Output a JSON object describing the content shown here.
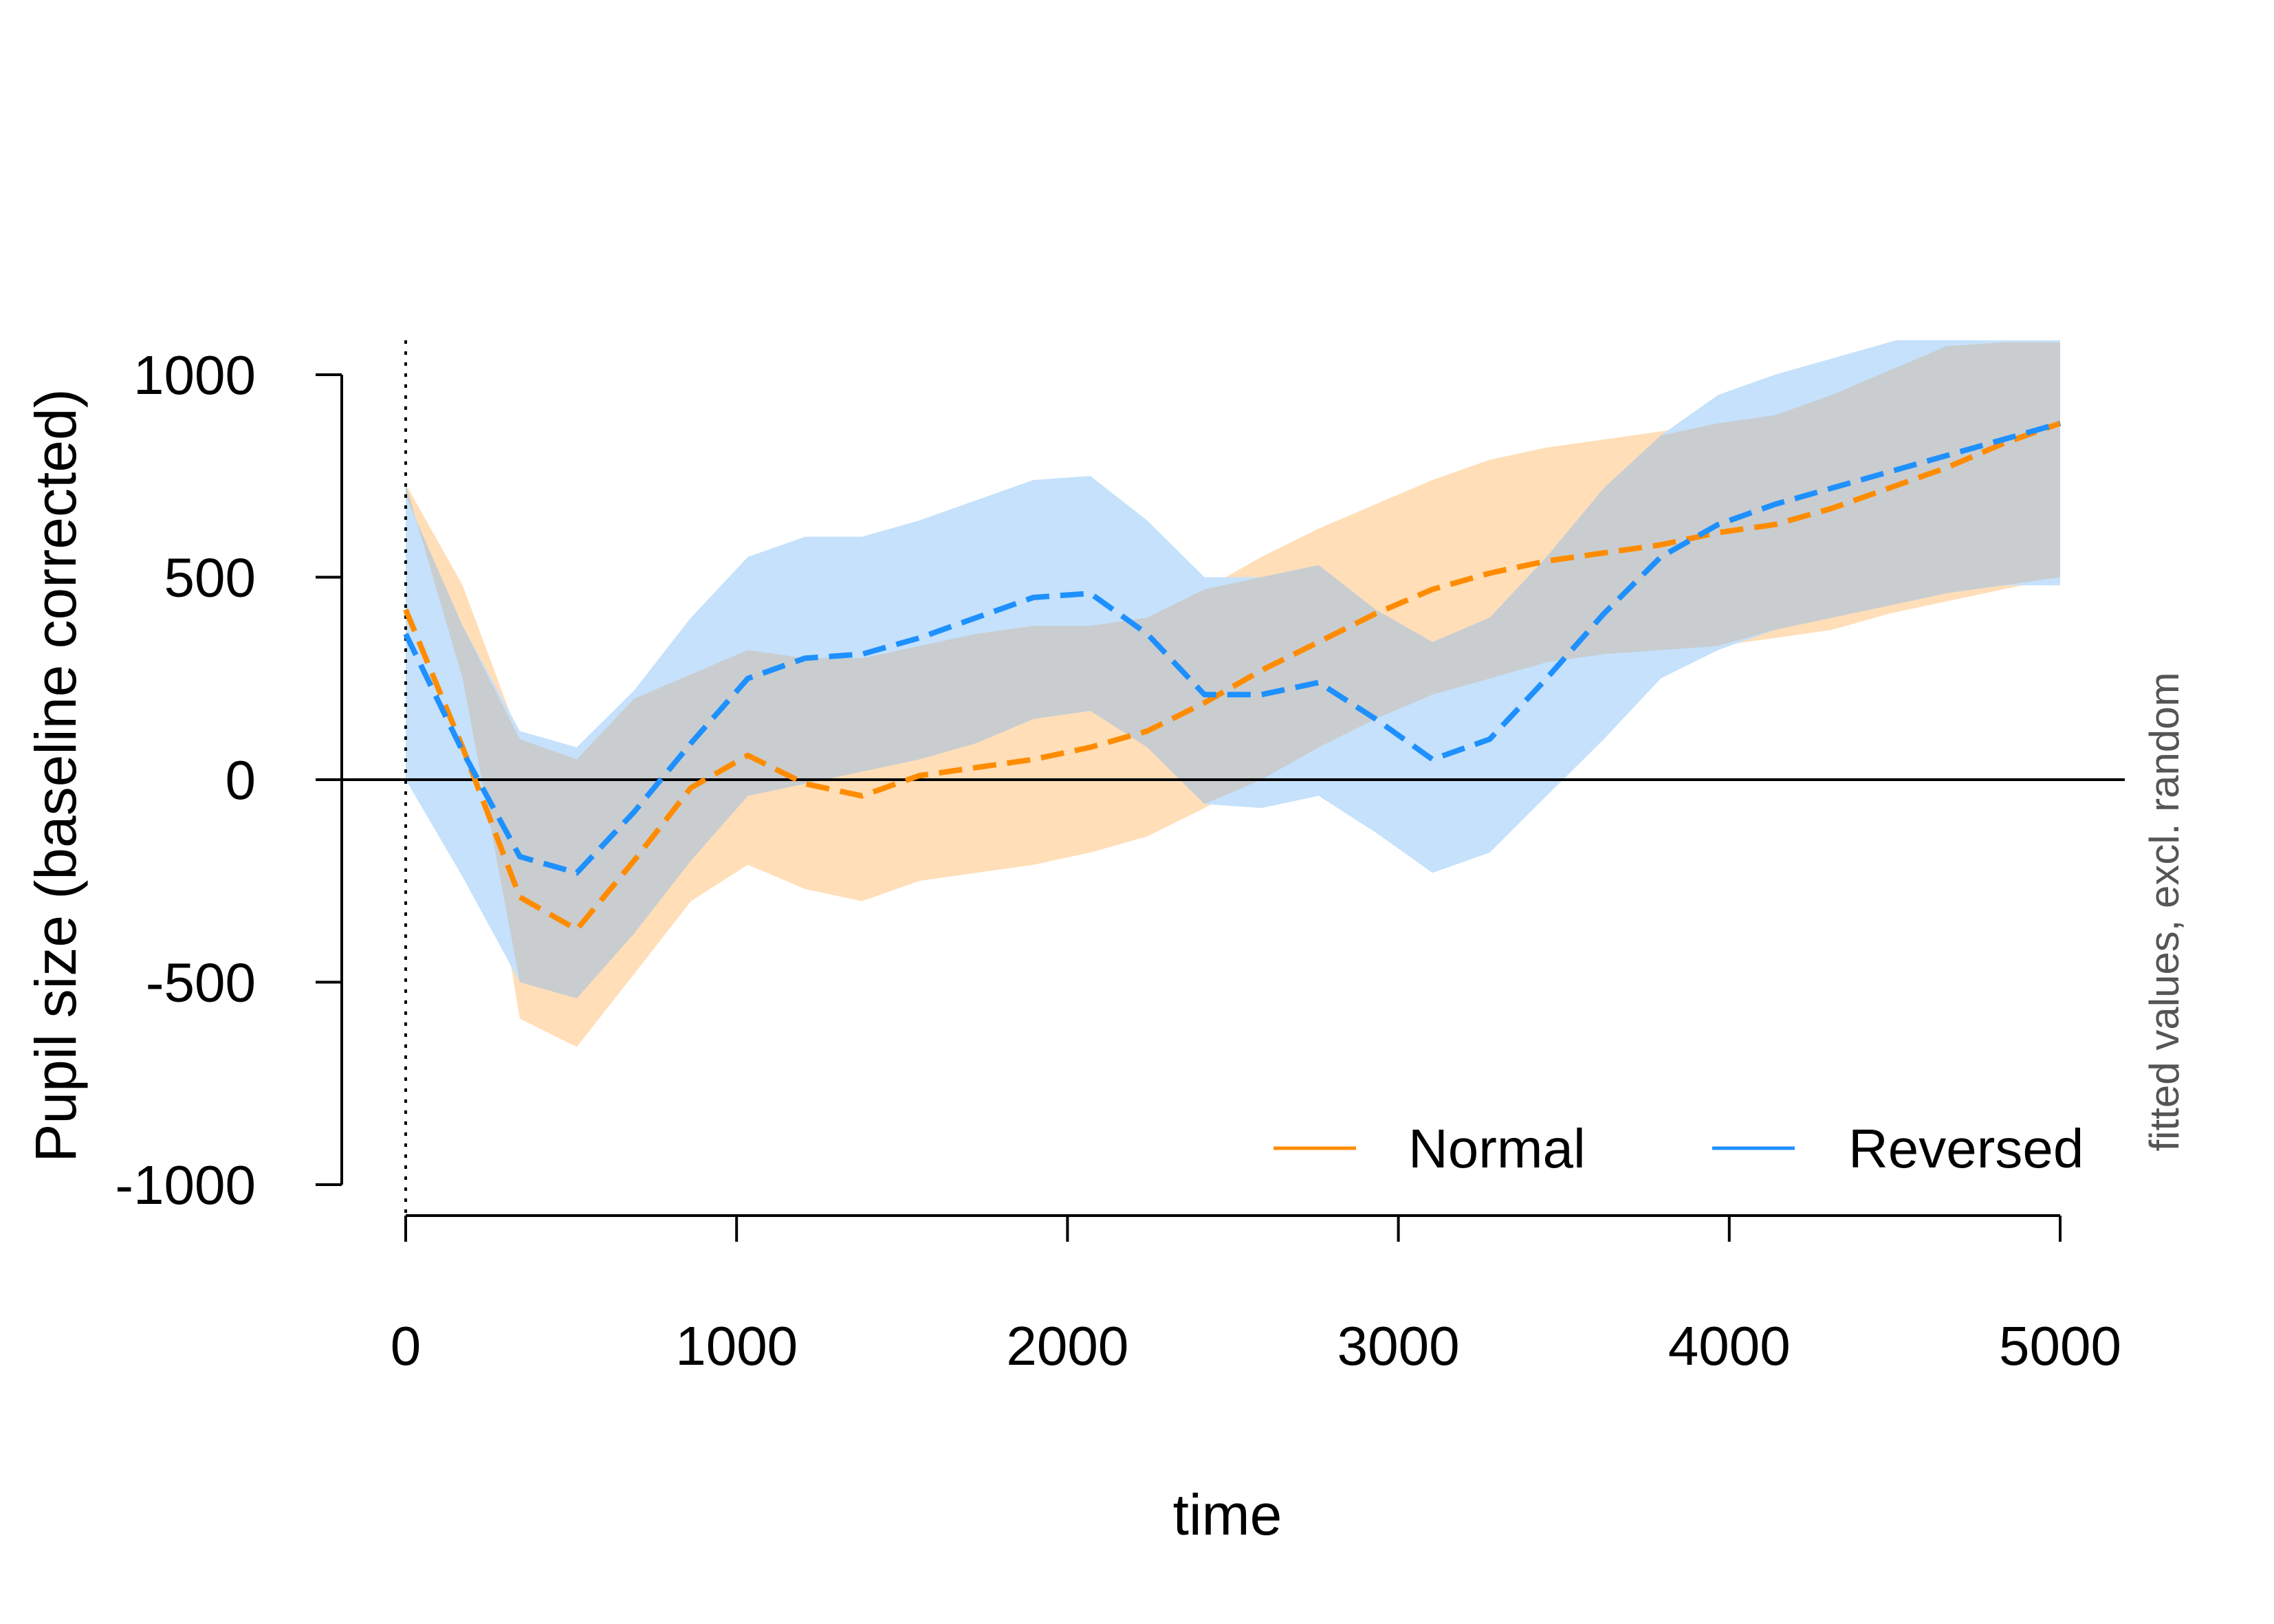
{
  "chart_data": {
    "type": "line",
    "xlabel": "time",
    "ylabel": "Pupil size (baseline corrected)",
    "side_note": "fitted values, excl. random",
    "xlim": [
      0,
      5000
    ],
    "ylim": [
      -1000,
      1000
    ],
    "xticks": [
      "0",
      "1000",
      "2000",
      "3000",
      "4000",
      "5000"
    ],
    "yticks": [
      "-1000",
      "-500",
      "0",
      "500",
      "1000"
    ],
    "reference_hline": 0,
    "reference_vline": 0,
    "legend_position": "bottom-right",
    "x": [
      0,
      172,
      345,
      517,
      690,
      862,
      1034,
      1207,
      1379,
      1552,
      1724,
      1897,
      2069,
      2241,
      2414,
      2586,
      2759,
      2931,
      3103,
      3276,
      3448,
      3621,
      3793,
      3966,
      4138,
      4310,
      4483,
      4655,
      4828,
      5000
    ],
    "series": [
      {
        "name": "Normal",
        "color": "#FF8C00",
        "fill": "#FFDEB8",
        "values": [
          420,
          80,
          -290,
          -370,
          -200,
          -20,
          60,
          -10,
          -40,
          10,
          30,
          50,
          80,
          120,
          190,
          270,
          340,
          410,
          470,
          510,
          540,
          560,
          580,
          610,
          630,
          670,
          720,
          770,
          830,
          880
        ],
        "lower": [
          730,
          250,
          -590,
          -660,
          -480,
          -300,
          -210,
          -270,
          -300,
          -250,
          -230,
          -210,
          -180,
          -140,
          -70,
          0,
          80,
          150,
          210,
          250,
          290,
          310,
          320,
          330,
          350,
          370,
          410,
          440,
          470,
          500
        ],
        "upper": [
          730,
          480,
          100,
          50,
          200,
          260,
          320,
          300,
          300,
          330,
          360,
          380,
          380,
          400,
          470,
          550,
          620,
          680,
          740,
          790,
          820,
          840,
          860,
          880,
          900,
          950,
          1010,
          1070,
          1080,
          1080
        ]
      },
      {
        "name": "Reversed",
        "color": "#1E90FF",
        "fill": "#C5E1FB",
        "values": [
          360,
          70,
          -190,
          -230,
          -80,
          90,
          250,
          300,
          310,
          350,
          400,
          450,
          460,
          360,
          210,
          210,
          240,
          150,
          50,
          100,
          250,
          410,
          550,
          630,
          680,
          720,
          760,
          800,
          840,
          880
        ],
        "lower": [
          0,
          -240,
          -500,
          -540,
          -380,
          -200,
          -40,
          -10,
          20,
          50,
          90,
          150,
          170,
          80,
          -60,
          -70,
          -40,
          -130,
          -230,
          -180,
          -40,
          100,
          250,
          320,
          370,
          400,
          430,
          460,
          480,
          480
        ],
        "upper": [
          700,
          380,
          120,
          80,
          220,
          400,
          550,
          600,
          600,
          640,
          690,
          740,
          750,
          640,
          500,
          500,
          530,
          420,
          340,
          400,
          550,
          720,
          850,
          950,
          1000,
          1040,
          1080,
          1120,
          1160,
          1200
        ]
      }
    ]
  }
}
